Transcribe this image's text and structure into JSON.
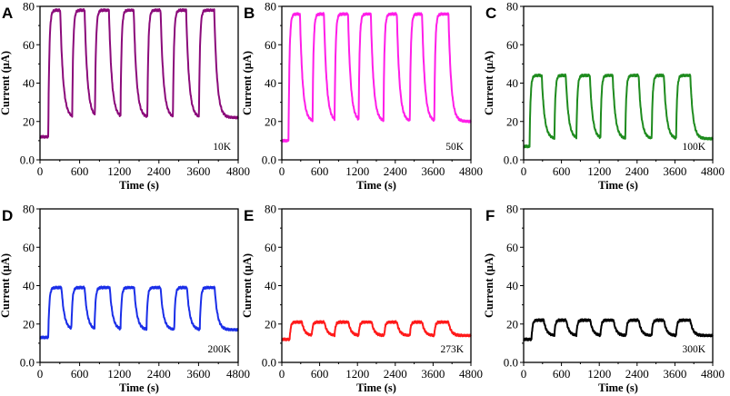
{
  "figure": {
    "xlabel": "Time (s)",
    "ylabel": "Current (μA)",
    "x_ticks": [
      "0",
      "600",
      "1200",
      "2400",
      "3600",
      "4800"
    ],
    "y_ticks": [
      "0.0",
      "20",
      "40",
      "60",
      "80"
    ]
  },
  "chart_data": [
    {
      "type": "line",
      "panel": "A",
      "temperature_label": "10K",
      "color": "#8B0A7A",
      "xlim": [
        0,
        4800
      ],
      "ylim": [
        0,
        80
      ],
      "x_tick_labels": [
        "0",
        "600",
        "1200",
        "2400",
        "3600",
        "4800"
      ],
      "y_tick_labels": [
        "0.0",
        "20",
        "40",
        "60",
        "80"
      ],
      "xlabel": "Time (s)",
      "ylabel": "Current (μA)",
      "baseline": 12,
      "on_level": 78,
      "off_level": 22,
      "on_times": [
        200,
        780,
        1330,
        1950,
        2600,
        3220,
        3850
      ],
      "off_times": [
        490,
        1080,
        1670,
        2270,
        2920,
        3540,
        4220
      ]
    },
    {
      "type": "line",
      "panel": "B",
      "temperature_label": "50K",
      "color": "#FF1EE8",
      "xlim": [
        0,
        4800
      ],
      "ylim": [
        0,
        80
      ],
      "x_tick_labels": [
        "0",
        "600",
        "1200",
        "2400",
        "3600",
        "4800"
      ],
      "y_tick_labels": [
        "0.0",
        "20",
        "40",
        "60",
        "80"
      ],
      "xlabel": "Time (s)",
      "ylabel": "Current (μA)",
      "baseline": 10,
      "on_level": 76,
      "off_level": 20,
      "on_times": [
        170,
        780,
        1340,
        1950,
        2580,
        3250,
        3870
      ],
      "off_times": [
        460,
        1070,
        1680,
        2260,
        2920,
        3560,
        4230
      ]
    },
    {
      "type": "line",
      "panel": "C",
      "temperature_label": "100K",
      "color": "#1E8B1E",
      "xlim": [
        0,
        4800
      ],
      "ylim": [
        0,
        80
      ],
      "x_tick_labels": [
        "0",
        "600",
        "1200",
        "2400",
        "3600",
        "4800"
      ],
      "y_tick_labels": [
        "0.0",
        "20",
        "40",
        "60",
        "80"
      ],
      "xlabel": "Time (s)",
      "ylabel": "Current (μA)",
      "baseline": 7,
      "on_level": 44,
      "off_level": 11,
      "on_times": [
        150,
        780,
        1340,
        1950,
        2580,
        3250,
        3870
      ],
      "off_times": [
        460,
        1070,
        1680,
        2260,
        2920,
        3560,
        4230
      ]
    },
    {
      "type": "line",
      "panel": "D",
      "temperature_label": "200K",
      "color": "#1A2EE8",
      "xlim": [
        0,
        4800
      ],
      "ylim": [
        0,
        80
      ],
      "x_tick_labels": [
        "0",
        "600",
        "1200",
        "2400",
        "3600",
        "4800"
      ],
      "y_tick_labels": [
        "0.0",
        "20",
        "40",
        "60",
        "80"
      ],
      "xlabel": "Time (s)",
      "ylabel": "Current (μA)",
      "baseline": 13,
      "on_level": 39,
      "off_level": 17,
      "on_times": [
        200,
        760,
        1320,
        1950,
        2580,
        3250,
        3870
      ],
      "off_times": [
        520,
        1080,
        1690,
        2280,
        2920,
        3560,
        4230
      ]
    },
    {
      "type": "line",
      "panel": "E",
      "temperature_label": "273K",
      "color": "#FF1A1A",
      "xlim": [
        0,
        4800
      ],
      "ylim": [
        0,
        80
      ],
      "x_tick_labels": [
        "0",
        "600",
        "1200",
        "2400",
        "3600",
        "4800"
      ],
      "y_tick_labels": [
        "0.0",
        "20",
        "40",
        "60",
        "80"
      ],
      "xlabel": "Time (s)",
      "ylabel": "Current (μA)",
      "baseline": 12,
      "on_level": 21,
      "off_level": 14,
      "on_times": [
        200,
        760,
        1340,
        1950,
        2600,
        3250,
        3870
      ],
      "off_times": [
        510,
        1080,
        1690,
        2280,
        2920,
        3560,
        4230
      ]
    },
    {
      "type": "line",
      "panel": "F",
      "temperature_label": "300K",
      "color": "#000000",
      "xlim": [
        0,
        4800
      ],
      "ylim": [
        0,
        80
      ],
      "x_tick_labels": [
        "0",
        "600",
        "1200",
        "2400",
        "3600",
        "4800"
      ],
      "y_tick_labels": [
        "0.0",
        "20",
        "40",
        "60",
        "80"
      ],
      "xlabel": "Time (s)",
      "ylabel": "Current (μA)",
      "baseline": 12,
      "on_level": 22,
      "off_level": 14,
      "on_times": [
        200,
        780,
        1340,
        1950,
        2600,
        3250,
        3870
      ],
      "off_times": [
        510,
        1080,
        1690,
        2280,
        2920,
        3560,
        4230
      ]
    }
  ]
}
